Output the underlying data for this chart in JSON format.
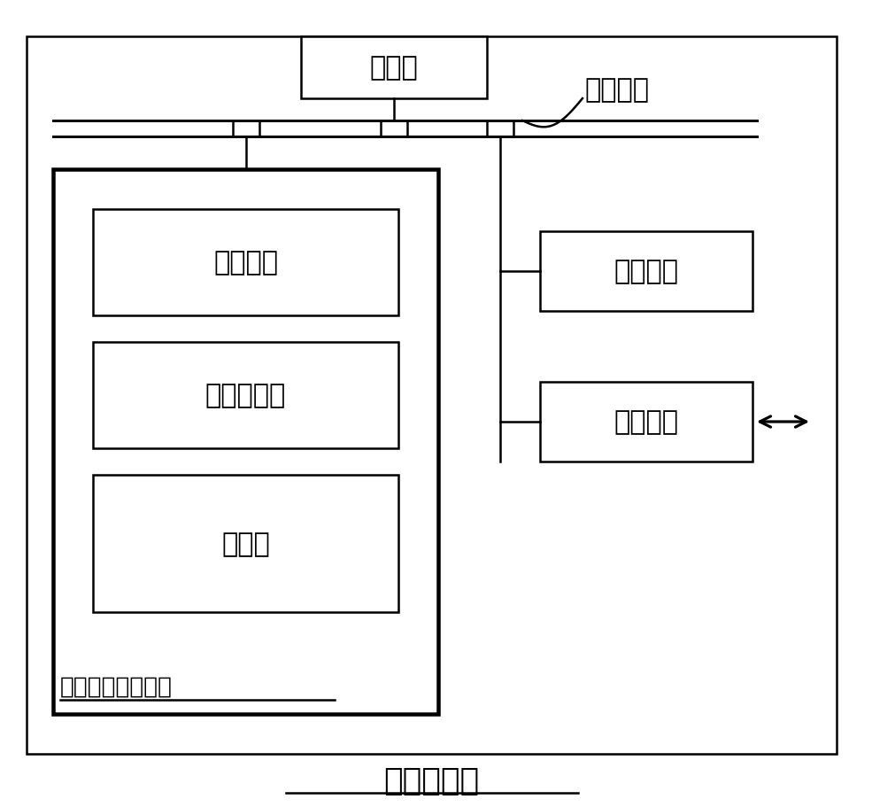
{
  "bg_color": "#ffffff",
  "border_color": "#000000",
  "title": "计算机设备",
  "processor_label": "处理器",
  "system_bus_label": "系统总线",
  "memory_label": "内存储器",
  "network_label": "网络接口",
  "nonvolatile_label": "非易失性存储介质",
  "os_label": "操作系统",
  "program_label": "计算机程序",
  "database_label": "数据库",
  "lw": 1.8
}
